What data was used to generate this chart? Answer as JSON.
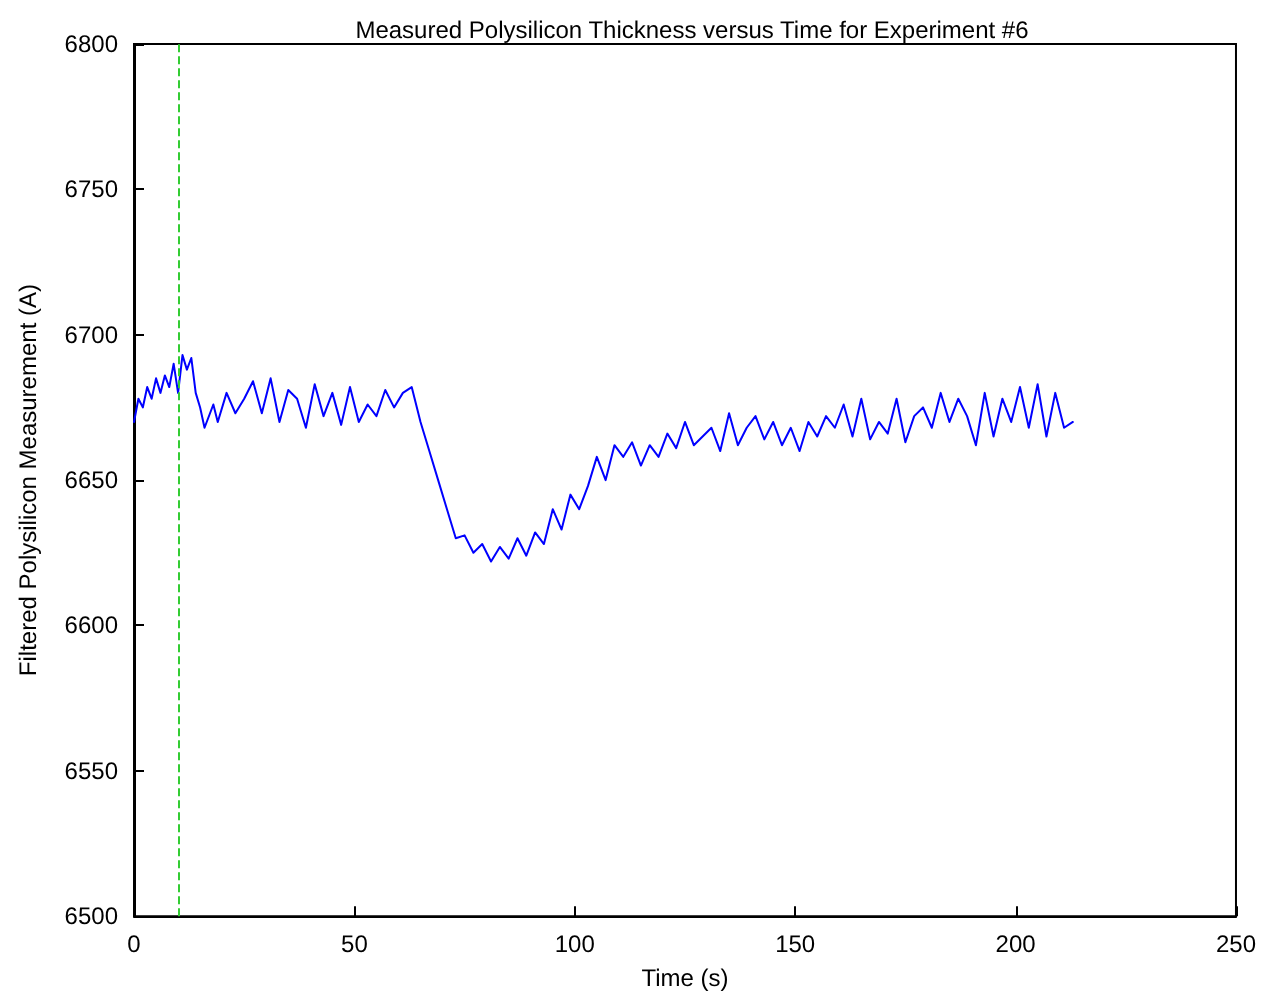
{
  "chart_data": {
    "type": "line",
    "title": "Measured Polysilicon Thickness versus Time for Experiment #6",
    "xlabel": "Time (s)",
    "ylabel": "Filtered Polysilicon Measurement (A)",
    "x": [
      0,
      1,
      2,
      3,
      4,
      5,
      6,
      7,
      8,
      9,
      10,
      11,
      12,
      13,
      14,
      15,
      16,
      18,
      19,
      21,
      23,
      25,
      27,
      29,
      31,
      33,
      35,
      37,
      39,
      41,
      43,
      45,
      47,
      49,
      51,
      53,
      55,
      57,
      59,
      61,
      63,
      65,
      67,
      69,
      71,
      73,
      75,
      77,
      79,
      81,
      83,
      85,
      87,
      89,
      91,
      93,
      95,
      97,
      99,
      101,
      103,
      105,
      107,
      109,
      111,
      113,
      115,
      117,
      119,
      121,
      123,
      125,
      127,
      129,
      131,
      133,
      135,
      137,
      139,
      141,
      143,
      145,
      147,
      149,
      151,
      153,
      155,
      157,
      159,
      161,
      163,
      165,
      167,
      169,
      171,
      173,
      175,
      177,
      179,
      181,
      183,
      185,
      187,
      189,
      191,
      193,
      195,
      197,
      199,
      201,
      203,
      205,
      207,
      209,
      211,
      213
    ],
    "series": [
      {
        "color": "#0000ff",
        "values": [
          6670,
          6678,
          6675,
          6682,
          6678,
          6685,
          6680,
          6686,
          6682,
          6690,
          6680,
          6693,
          6688,
          6692,
          6680,
          6675,
          6668,
          6676,
          6670,
          6680,
          6673,
          6678,
          6684,
          6673,
          6685,
          6670,
          6681,
          6678,
          6668,
          6683,
          6672,
          6680,
          6669,
          6682,
          6670,
          6676,
          6672,
          6681,
          6675,
          6680,
          6682,
          6670,
          6660,
          6650,
          6640,
          6630,
          6631,
          6625,
          6628,
          6622,
          6627,
          6623,
          6630,
          6624,
          6632,
          6628,
          6640,
          6633,
          6645,
          6640,
          6648,
          6658,
          6650,
          6662,
          6658,
          6663,
          6655,
          6662,
          6658,
          6666,
          6661,
          6670,
          6662,
          6665,
          6668,
          6660,
          6673,
          6662,
          6668,
          6672,
          6664,
          6670,
          6662,
          6668,
          6660,
          6670,
          6665,
          6672,
          6668,
          6676,
          6665,
          6678,
          6664,
          6670,
          6666,
          6678,
          6663,
          6672,
          6675,
          6668,
          6680,
          6670,
          6678,
          6672,
          6662,
          6680,
          6665,
          6678,
          6670,
          6682,
          6668,
          6683,
          6665,
          6680,
          6668,
          6670
        ]
      }
    ],
    "xlim": [
      0,
      250
    ],
    "xticks": [
      0,
      50,
      100,
      150,
      200,
      250
    ],
    "ylim": [
      6500,
      6800
    ],
    "yticks": [
      6500,
      6550,
      6600,
      6650,
      6700,
      6750,
      6800
    ],
    "ref_lines": [
      {
        "axis": "x",
        "value": 10,
        "color": "#33cc33",
        "line_style": "dashed"
      }
    ],
    "grid": false,
    "marker": "none",
    "line_style": "solid"
  }
}
